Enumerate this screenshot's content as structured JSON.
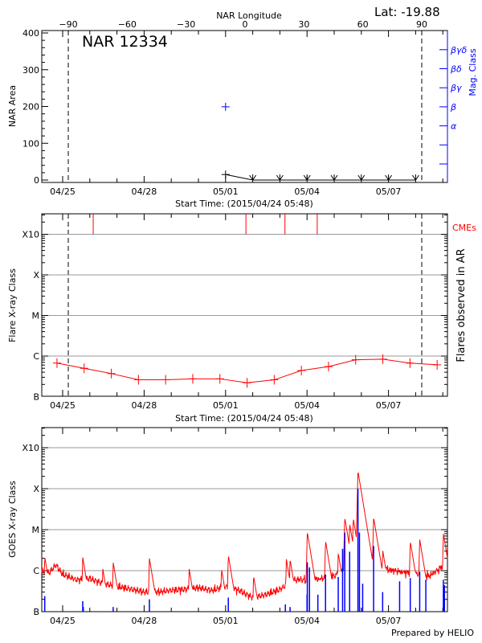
{
  "header": {
    "lat_label": "Lat: -19.88",
    "region_title": "NAR 12334",
    "footer": "Prepared by HELIO"
  },
  "colors": {
    "flare_series": "#ff0000",
    "mag_class": "#0000ff",
    "goes_long": "#ff0000",
    "goes_short": "#0000ff",
    "grid": "#999999",
    "cme": "#ff0000"
  },
  "chart_data": [
    {
      "type": "line",
      "title": "NAR 12334",
      "xlabel": "Start Time: (2015/04/24 05:48)",
      "ylabel": "NAR Area",
      "ylabel_right": "Mag. Class",
      "top_axis_label": "NAR Longitude",
      "top_axis_ticks": [
        "-90",
        "-60",
        "-30",
        "0",
        "30",
        "60",
        "90"
      ],
      "x_tick_labels": [
        "04/25",
        "04/28",
        "05/01",
        "05/04",
        "05/07"
      ],
      "y_tick_labels": [
        "0",
        "100",
        "200",
        "300",
        "400"
      ],
      "ylim": [
        0,
        400
      ],
      "xlim": [
        "2015-04-24 05:48",
        "2015-05-09 02:00"
      ],
      "mag_class_ticks": [
        "",
        "",
        "α",
        "β",
        "βγ",
        "βδ",
        "βγδ"
      ],
      "limb_lines": [
        "-90",
        "90"
      ],
      "area_series": {
        "x": [
          "2015-05-01 00:00",
          "2015-05-02 00:00",
          "2015-05-03 00:00",
          "2015-05-04 00:00",
          "2015-05-05 00:00",
          "2015-05-06 00:00",
          "2015-05-07 00:00",
          "2015-05-08 00:00"
        ],
        "y": [
          15,
          0,
          0,
          0,
          0,
          0,
          0,
          0
        ]
      },
      "mag_class_points": [
        {
          "x": "2015-05-01 00:00",
          "class": "β"
        }
      ]
    },
    {
      "type": "line",
      "xlabel": "Start Time: (2015/04/24 05:48)",
      "ylabel": "Flare X-ray Class",
      "ylabel_right": "Flares observed in AR",
      "cme_label": "CMEs",
      "x_tick_labels": [
        "04/25",
        "04/28",
        "05/01",
        "05/04",
        "05/07"
      ],
      "y_tick_labels": [
        "B",
        "C",
        "M",
        "X",
        "X10"
      ],
      "y_scale": "log",
      "grid": true,
      "cmes": [
        "2015-04-26 03:00",
        "2015-05-01 18:00",
        "2015-05-03 04:30",
        "2015-05-04 09:00"
      ],
      "series": [
        {
          "x": [
            "2015-04-24 19:00",
            "2015-04-25 19:00",
            "2015-04-26 19:00",
            "2015-04-27 19:00",
            "2015-04-28 19:00",
            "2015-04-29 19:00",
            "2015-04-30 19:00",
            "2015-05-01 19:00",
            "2015-05-02 19:00",
            "2015-05-03 19:00",
            "2015-05-04 19:00",
            "2015-05-05 19:00",
            "2015-05-06 19:00",
            "2015-05-07 19:00",
            "2015-05-08 19:00"
          ],
          "y": [
            "B6.7",
            "B5.0",
            "B3.7",
            "B2.6",
            "B2.6",
            "B2.75",
            "B2.75",
            "B2.2",
            "B2.6",
            "B4.4",
            "B5.5",
            "B8.1",
            "B8.4",
            "B6.7",
            "B6.1"
          ]
        }
      ]
    },
    {
      "type": "line",
      "ylabel": "GOES X-ray Class",
      "x_tick_labels": [
        "04/25",
        "04/28",
        "05/01",
        "05/04",
        "05/07"
      ],
      "y_tick_labels": [
        "B",
        "C",
        "M",
        "X",
        "X10"
      ],
      "y_scale": "log",
      "grid": true,
      "long_channel_baseline": {
        "x": [
          "2015-04-24 06:00",
          "2015-04-24 12:00",
          "2015-04-24 18:00",
          "2015-04-25 00:00",
          "2015-04-25 06:00",
          "2015-04-25 12:00",
          "2015-04-25 18:00",
          "2015-04-26 00:00",
          "2015-04-26 12:00",
          "2015-04-27 00:00",
          "2015-04-27 12:00",
          "2015-04-28 00:00",
          "2015-04-28 12:00",
          "2015-04-29 00:00",
          "2015-04-29 12:00",
          "2015-04-30 00:00",
          "2015-04-30 12:00",
          "2015-05-01 00:00",
          "2015-05-01 12:00",
          "2015-05-02 00:00",
          "2015-05-02 12:00",
          "2015-05-03 00:00",
          "2015-05-03 12:00",
          "2015-05-04 00:00",
          "2015-05-04 12:00",
          "2015-05-05 00:00",
          "2015-05-05 12:00",
          "2015-05-06 00:00",
          "2015-05-06 12:00",
          "2015-05-07 00:00",
          "2015-05-07 12:00",
          "2015-05-08 00:00",
          "2015-05-08 12:00",
          "2015-05-09 00:00"
        ],
        "y": [
          "C1.0",
          "B8.7",
          "C1.4",
          "B8.1",
          "B7.0",
          "B6.0",
          "B6.0",
          "B6.4",
          "B4.8",
          "B4.1",
          "B3.6",
          "B3.0",
          "B3.0",
          "B3.3",
          "B3.5",
          "B3.8",
          "B3.3",
          "B4.1",
          "B3.3",
          "B2.2",
          "B2.6",
          "B3.5",
          "B6.0",
          "B5.5",
          "B6.0",
          "B7.0",
          "C1.2",
          "C1.3",
          "C1.2",
          "C1.0",
          "B8.7",
          "B8.1",
          "B7.0",
          "C1.2"
        ]
      },
      "long_channel_peaks": [
        {
          "x": "2015-04-24 08:10",
          "y": "C2.2"
        },
        {
          "x": "2015-04-25 17:45",
          "y": "C2.1"
        },
        {
          "x": "2015-04-26 11:30",
          "y": "C1.1"
        },
        {
          "x": "2015-04-26 20:40",
          "y": "C1.6"
        },
        {
          "x": "2015-04-28 04:40",
          "y": "C2.0"
        },
        {
          "x": "2015-04-29 15:50",
          "y": "C1.1"
        },
        {
          "x": "2015-04-30 20:25",
          "y": "C1.1"
        },
        {
          "x": "2015-05-01 02:25",
          "y": "C2.4"
        },
        {
          "x": "2015-05-02 00:45",
          "y": "B7.5"
        },
        {
          "x": "2015-05-03 05:45",
          "y": "C1.9"
        },
        {
          "x": "2015-05-03 09:00",
          "y": "C1.9"
        },
        {
          "x": "2015-05-04 00:15",
          "y": "C8.7"
        },
        {
          "x": "2015-05-04 16:20",
          "y": "C5.4"
        },
        {
          "x": "2015-05-05 03:35",
          "y": "C2.7"
        },
        {
          "x": "2015-05-05 09:20",
          "y": "M2.0"
        },
        {
          "x": "2015-05-05 13:40",
          "y": "M1.4"
        },
        {
          "x": "2015-05-05 16:50",
          "y": "M1.9"
        },
        {
          "x": "2015-05-05 21:00",
          "y": "X2.7"
        },
        {
          "x": "2015-05-05 22:20",
          "y": "M5.6"
        },
        {
          "x": "2015-05-06 10:50",
          "y": "M2.0"
        },
        {
          "x": "2015-05-06 18:50",
          "y": "C3.2"
        },
        {
          "x": "2015-05-07 19:15",
          "y": "C5.2"
        },
        {
          "x": "2015-05-08 03:35",
          "y": "C5.8"
        },
        {
          "x": "2015-05-09 00:30",
          "y": "C8.1"
        }
      ],
      "short_channel_bars": [
        {
          "x": "2015-04-24 08:10",
          "y": "B2.4"
        },
        {
          "x": "2015-04-25 17:45",
          "y": "B1.8"
        },
        {
          "x": "2015-04-25 18:15",
          "y": "B1.3"
        },
        {
          "x": "2015-04-26 20:40",
          "y": "B1.3"
        },
        {
          "x": "2015-04-28 04:40",
          "y": "B2.0"
        },
        {
          "x": "2015-05-01 02:25",
          "y": "B2.2"
        },
        {
          "x": "2015-05-03 04:50",
          "y": "B1.5"
        },
        {
          "x": "2015-05-03 09:00",
          "y": "B1.3"
        },
        {
          "x": "2015-05-04 00:00",
          "y": "B2.6"
        },
        {
          "x": "2015-05-04 00:15",
          "y": "C1.6"
        },
        {
          "x": "2015-05-04 02:10",
          "y": "C1.2"
        },
        {
          "x": "2015-05-04 09:35",
          "y": "B2.6"
        },
        {
          "x": "2015-05-04 16:20",
          "y": "B8.1"
        },
        {
          "x": "2015-05-05 03:35",
          "y": "B7.0"
        },
        {
          "x": "2015-05-05 07:25",
          "y": "C3.4"
        },
        {
          "x": "2015-05-05 09:20",
          "y": "C8.5"
        },
        {
          "x": "2015-05-05 13:40",
          "y": "C2.9"
        },
        {
          "x": "2015-05-05 21:00",
          "y": "X1.0"
        },
        {
          "x": "2015-05-05 22:20",
          "y": "C8.5"
        },
        {
          "x": "2015-05-06 01:10",
          "y": "B4.8"
        },
        {
          "x": "2015-05-06 10:50",
          "y": "C4.0"
        },
        {
          "x": "2015-05-06 18:50",
          "y": "B3.0"
        },
        {
          "x": "2015-05-07 09:50",
          "y": "B5.5"
        },
        {
          "x": "2015-05-07 19:15",
          "y": "B6.6"
        },
        {
          "x": "2015-05-08 03:35",
          "y": "B9.4"
        },
        {
          "x": "2015-05-08 09:00",
          "y": "B6.0"
        },
        {
          "x": "2015-05-09 00:30",
          "y": "B6.0"
        },
        {
          "x": "2015-05-09 01:25",
          "y": "B4.4"
        }
      ]
    }
  ]
}
